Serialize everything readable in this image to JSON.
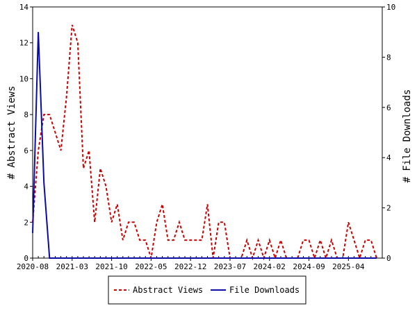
{
  "chart_data": {
    "type": "line",
    "title": "",
    "ylabel_left": "# Abstract Views",
    "ylabel_right": "# File Downloads",
    "ylim_left": [
      0,
      14
    ],
    "ylim_right": [
      0,
      10
    ],
    "y_ticks_left": [
      "0",
      "2",
      "4",
      "6",
      "8",
      "10",
      "12",
      "14"
    ],
    "y_ticks_right": [
      "0",
      "2",
      "4",
      "6",
      "8",
      "10"
    ],
    "x_tick_labels": [
      "2020-08",
      "2021-03",
      "2021-10",
      "2022-05",
      "2022-12",
      "2023-07",
      "2024-02",
      "2024-09",
      "2025-04"
    ],
    "x_start": "2020-08",
    "x_end": "2025-10",
    "legend_position": "bottom",
    "grid": false,
    "series": [
      {
        "name": "Abstract Views",
        "axis": "left",
        "color": "#cc0000",
        "style": "dashed",
        "x": [
          "2020-08",
          "2020-09",
          "2020-10",
          "2020-11",
          "2020-12",
          "2021-01",
          "2021-02",
          "2021-03",
          "2021-04",
          "2021-05",
          "2021-06",
          "2021-07",
          "2021-08",
          "2021-09",
          "2021-10",
          "2021-11",
          "2021-12",
          "2022-01",
          "2022-02",
          "2022-03",
          "2022-04",
          "2022-05",
          "2022-06",
          "2022-07",
          "2022-08",
          "2022-09",
          "2022-10",
          "2022-11",
          "2022-12",
          "2023-01",
          "2023-02",
          "2023-03",
          "2023-04",
          "2023-05",
          "2023-06",
          "2023-07",
          "2023-08",
          "2023-09",
          "2023-10",
          "2023-11",
          "2023-12",
          "2024-01",
          "2024-02",
          "2024-03",
          "2024-04",
          "2024-05",
          "2024-06",
          "2024-07",
          "2024-08",
          "2024-09",
          "2024-10",
          "2024-11",
          "2024-12",
          "2025-01",
          "2025-02",
          "2025-03",
          "2025-04",
          "2025-05",
          "2025-06",
          "2025-07",
          "2025-08",
          "2025-09"
        ],
        "values": [
          2,
          6,
          8,
          8,
          7,
          6,
          9,
          13,
          12,
          5,
          6,
          2,
          5,
          4,
          2,
          3,
          1,
          2,
          2,
          1,
          1,
          0,
          2,
          3,
          1,
          1,
          2,
          1,
          1,
          1,
          1,
          3,
          0,
          2,
          2,
          0,
          0,
          0,
          1,
          0,
          1,
          0,
          1,
          0,
          1,
          0,
          0,
          0,
          1,
          1,
          0,
          1,
          0,
          1,
          0,
          0,
          2,
          1,
          0,
          1,
          1,
          0
        ]
      },
      {
        "name": "File Downloads",
        "axis": "right",
        "color": "#0a0aa8",
        "style": "solid",
        "x": [
          "2020-08",
          "2020-09",
          "2020-10",
          "2020-11",
          "2020-12",
          "2025-09"
        ],
        "values": [
          1,
          9,
          3,
          0,
          0,
          0
        ]
      }
    ]
  }
}
